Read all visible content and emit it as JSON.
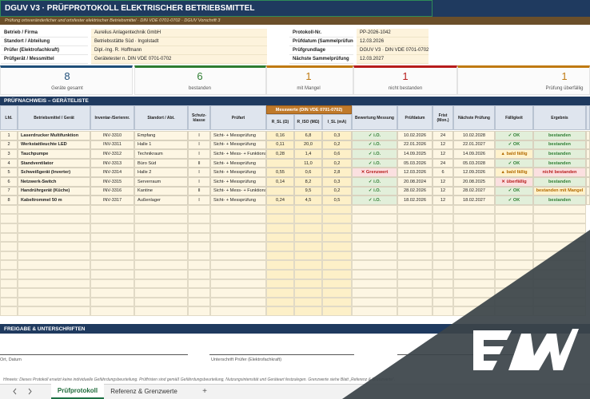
{
  "header": {
    "title": "DGUV V3 · PRÜFPROTOKOLL ELEKTRISCHER BETRIEBSMITTEL",
    "subtitle": "Prüfung ortsveränderlicher und ortsfester elektrischer Betriebsmittel · DIN VDE 0701-0702 · DGUV Vorschrift 3"
  },
  "info_left": [
    [
      "Betrieb / Firma",
      "Aurelius Anlagentechnik GmbH"
    ],
    [
      "Standort / Abteilung",
      "Betriebsstätte Süd · Ingolstadt"
    ],
    [
      "Prüfer (Elektrofachkraft)",
      "Dipl.-Ing. R. Hoffmann"
    ],
    [
      "Prüfgerät / Messmittel",
      "Gerätetester n. DIN VDE 0701-0702"
    ]
  ],
  "info_right": [
    [
      "Protokoll-Nr.",
      "PP-2026-1042"
    ],
    [
      "Prüfdatum (Sammelprüfung)",
      "12.03.2026"
    ],
    [
      "Prüfgrundlage",
      "DGUV V3 · DIN VDE 0701-0702"
    ],
    [
      "Nächste Sammelprüfung",
      "12.03.2027"
    ]
  ],
  "kpis": [
    {
      "value": "8",
      "label": "Geräte gesamt",
      "color": "#1f4e79"
    },
    {
      "value": "6",
      "label": "bestanden",
      "color": "#2e7d32"
    },
    {
      "value": "1",
      "label": "mit Mangel",
      "color": "#c07a12"
    },
    {
      "value": "1",
      "label": "nicht bestanden",
      "color": "#b71c1c"
    },
    {
      "value": "1",
      "label": "Prüfung überfällig",
      "color": "#c07a12"
    }
  ],
  "table": {
    "section": "PRÜFNACHWEIS – GERÄTELISTE",
    "group_header": "Messwerte (DIN VDE 0701-0702)",
    "columns": [
      "Lfd.",
      "Betriebsmittel / Gerät",
      "Inventar-/Seriennr.",
      "Standort / Abt.",
      "Schutz-klasse",
      "Prüfart",
      "R_SL (Ω)",
      "R_ISO (MΩ)",
      "I_SL (mA)",
      "Bewertung Messung",
      "Prüfdatum",
      "Frist (Mon.)",
      "Nächste Prüfung",
      "Fälligkeit",
      "Ergebnis"
    ],
    "rows": [
      [
        "1",
        "Laserdrucker Multifunktion",
        "INV-3310",
        "Empfang",
        "I",
        "Sicht- + Messprüfung",
        "0,16",
        "6,8",
        "0,3",
        {
          "text": "✓ i.O.",
          "bg": "#e2efda",
          "fg": "#2e7d32"
        },
        "10.02.2026",
        "24",
        "10.02.2028",
        {
          "text": "✓ OK",
          "bg": "#e2efda",
          "fg": "#2e7d32"
        },
        {
          "text": "bestanden",
          "bg": "#e2efda",
          "fg": "#2e7d32"
        }
      ],
      [
        "2",
        "Werkstattleuchte LED",
        "INV-3311",
        "Halle 1",
        "I",
        "Sicht- + Messprüfung",
        "0,11",
        "20,0",
        "0,2",
        {
          "text": "✓ i.O.",
          "bg": "#e2efda",
          "fg": "#2e7d32"
        },
        "22.01.2026",
        "12",
        "22.01.2027",
        {
          "text": "✓ OK",
          "bg": "#e2efda",
          "fg": "#2e7d32"
        },
        {
          "text": "bestanden",
          "bg": "#e2efda",
          "fg": "#2e7d32"
        }
      ],
      [
        "3",
        "Tauchpumpe",
        "INV-3312",
        "Technikraum",
        "I",
        "Sicht- + Mess- + Funktionsprüfung",
        "0,28",
        "1,4",
        "0,6",
        {
          "text": "✓ i.O.",
          "bg": "#e2efda",
          "fg": "#2e7d32"
        },
        "14.09.2025",
        "12",
        "14.09.2026",
        {
          "text": "▲ bald fällig",
          "bg": "#fff2cc",
          "fg": "#b26a00"
        },
        {
          "text": "bestanden",
          "bg": "#e2efda",
          "fg": "#2e7d32"
        }
      ],
      [
        "4",
        "Standventilator",
        "INV-3313",
        "Büro Süd",
        "II",
        "Sicht- + Messprüfung",
        "",
        "11,0",
        "0,2",
        {
          "text": "✓ i.O.",
          "bg": "#e2efda",
          "fg": "#2e7d32"
        },
        "05.03.2026",
        "24",
        "05.03.2028",
        {
          "text": "✓ OK",
          "bg": "#e2efda",
          "fg": "#2e7d32"
        },
        {
          "text": "bestanden",
          "bg": "#e2efda",
          "fg": "#2e7d32"
        }
      ],
      [
        "5",
        "Schweißgerät (Inverter)",
        "INV-3314",
        "Halle 2",
        "I",
        "Sicht- + Messprüfung",
        "0,55",
        "0,6",
        "2,8",
        {
          "text": "✕ Grenzwert",
          "bg": "#fbe0e0",
          "fg": "#b71c1c"
        },
        "12.03.2026",
        "6",
        "12.09.2026",
        {
          "text": "▲ bald fällig",
          "bg": "#fff2cc",
          "fg": "#b26a00"
        },
        {
          "text": "nicht bestanden",
          "bg": "#fbe0e0",
          "fg": "#b71c1c"
        }
      ],
      [
        "6",
        "Netzwerk-Switch",
        "INV-3315",
        "Serverraum",
        "I",
        "Sicht- + Messprüfung",
        "0,14",
        "8,2",
        "0,3",
        {
          "text": "✓ i.O.",
          "bg": "#e2efda",
          "fg": "#2e7d32"
        },
        "20.08.2024",
        "12",
        "20.08.2025",
        {
          "text": "✕ überfällig",
          "bg": "#fbe0e0",
          "fg": "#b71c1c"
        },
        {
          "text": "bestanden",
          "bg": "#e2efda",
          "fg": "#2e7d32"
        }
      ],
      [
        "7",
        "Handrührgerät (Küche)",
        "INV-3316",
        "Kantine",
        "II",
        "Sicht- + Mess- + Funktionsprüfung",
        "",
        "9,5",
        "0,2",
        {
          "text": "✓ i.O.",
          "bg": "#e2efda",
          "fg": "#2e7d32"
        },
        "28.02.2026",
        "12",
        "28.02.2027",
        {
          "text": "✓ OK",
          "bg": "#e2efda",
          "fg": "#2e7d32"
        },
        {
          "text": "bestanden mit Mangel",
          "bg": "#fff2cc",
          "fg": "#b26a00"
        }
      ],
      [
        "8",
        "Kabeltrommel 50 m",
        "INV-3317",
        "Außenlager",
        "I",
        "Sicht- + Messprüfung",
        "0,24",
        "4,5",
        "0,5",
        {
          "text": "✓ i.O.",
          "bg": "#e2efda",
          "fg": "#2e7d32"
        },
        "18.02.2026",
        "12",
        "18.02.2027",
        {
          "text": "✓ OK",
          "bg": "#e2efda",
          "fg": "#2e7d32"
        },
        {
          "text": "bestanden",
          "bg": "#e2efda",
          "fg": "#2e7d32"
        }
      ]
    ]
  },
  "signatures": {
    "title": "FREIGABE & UNTERSCHRIFTEN",
    "place_date": "Ort, Datum",
    "signer": "Unterschrift Prüfer (Elektrofachkraft)"
  },
  "note": "Hinweis: Dieses Protokoll ersetzt keine individuelle Gefährdungsbeurteilung. Prüffristen sind gemäß Gefährdungsbeurteilung, Nutzungsintensität und Geräteart festzulegen. Grenzwerte siehe Blatt „Referenz & Grenzwerte“.",
  "tabs": [
    "Prüfprotokoll",
    "Referenz & Grenzwerte",
    "+"
  ]
}
